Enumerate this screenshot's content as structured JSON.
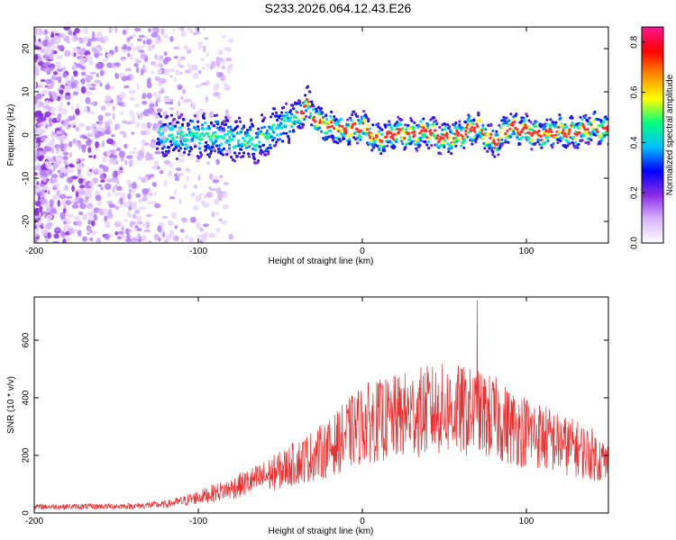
{
  "chart_data": [
    {
      "type": "heatmap",
      "title": "S233.2026.064.12.43.E26",
      "xlabel": "Height of straight line (km)",
      "ylabel": "Frequency (Hz)",
      "xlim": [
        -200,
        150
      ],
      "ylim": [
        -25,
        25
      ],
      "x_ticks": [
        -200,
        -100,
        0,
        100
      ],
      "y_ticks": [
        -20,
        -10,
        0,
        10,
        20
      ],
      "grid": false,
      "colormap": [
        "#ffffff",
        "#d9b3ff",
        "#8a2be2",
        "#0000ff",
        "#00bfff",
        "#00ff80",
        "#ffff00",
        "#ff8c00",
        "#ff0000",
        "#ff1493"
      ],
      "colorbar": {
        "label": "Normalized spectral amplitude",
        "ticks": [
          0.0,
          0.2,
          0.4,
          0.6,
          0.8
        ],
        "range": [
          0,
          0.86
        ]
      },
      "ridge": {
        "x": [
          -125,
          -110,
          -95,
          -80,
          -65,
          -50,
          -40,
          -33,
          -28,
          -20,
          -10,
          0,
          10,
          20,
          30,
          40,
          50,
          60,
          70,
          80,
          90,
          100,
          110,
          120,
          130,
          140,
          150
        ],
        "y": [
          0.5,
          -0.5,
          0,
          -1,
          -1.5,
          2,
          4,
          7.5,
          3,
          2,
          1,
          2,
          -1,
          0.5,
          0,
          1,
          -1,
          0,
          2,
          -2,
          2,
          1,
          0,
          1,
          0.5,
          2,
          1
        ]
      }
    },
    {
      "type": "line",
      "xlabel": "Height of straight line (km)",
      "ylabel": "SNR (10 * v/v)",
      "xlim": [
        -200,
        150
      ],
      "ylim": [
        0,
        750
      ],
      "x_ticks": [
        -200,
        -100,
        0,
        100
      ],
      "y_ticks": [
        0,
        200,
        400,
        600
      ],
      "color": "#e83030",
      "grid": false,
      "envelope": {
        "x": [
          -200,
          -180,
          -160,
          -140,
          -120,
          -110,
          -100,
          -90,
          -80,
          -70,
          -60,
          -50,
          -40,
          -30,
          -20,
          -10,
          0,
          10,
          20,
          30,
          40,
          50,
          60,
          70,
          80,
          90,
          100,
          110,
          120,
          130,
          140,
          150
        ],
        "y": [
          22,
          22,
          23,
          24,
          30,
          40,
          55,
          70,
          85,
          105,
          125,
          150,
          175,
          200,
          225,
          270,
          310,
          320,
          330,
          345,
          355,
          360,
          355,
          345,
          330,
          300,
          285,
          265,
          240,
          225,
          205,
          170
        ]
      },
      "peak": {
        "x": 70,
        "y": 740
      }
    }
  ]
}
